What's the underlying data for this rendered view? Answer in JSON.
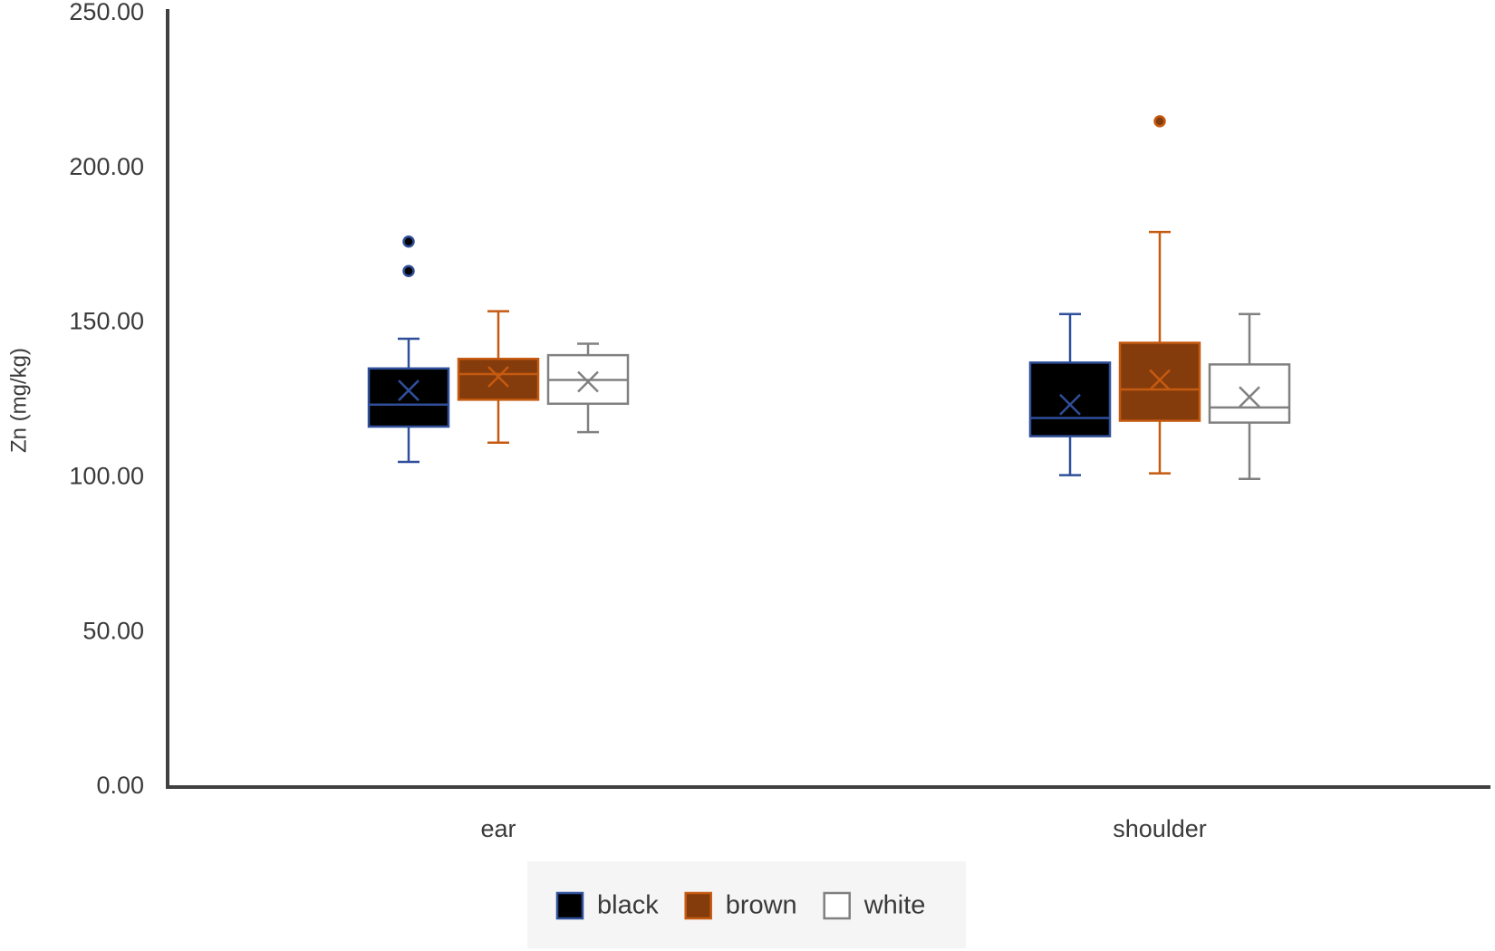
{
  "chart_data": {
    "type": "box",
    "y_label": "Zn (mg/kg)",
    "categories": [
      "ear",
      "shoulder"
    ],
    "ylim": [
      0,
      250
    ],
    "yticks": [
      {
        "value": 0,
        "label": "0.00"
      },
      {
        "value": 50,
        "label": "50.00"
      },
      {
        "value": 100,
        "label": "100.00"
      },
      {
        "value": 150,
        "label": "150.00"
      },
      {
        "value": 200,
        "label": "200.00"
      },
      {
        "value": 250,
        "label": "250.00"
      }
    ],
    "grid": false,
    "legend": "bottom",
    "series": [
      {
        "name": "black",
        "color": "#000000",
        "edge_color": "#2f4f9a",
        "values": [
          {
            "min": 105.1,
            "q1": 116.5,
            "median": 123.6,
            "q3": 135.3,
            "max": 144.9,
            "mean": 128.2,
            "outliers": [
              176.3,
              166.8
            ]
          },
          {
            "min": 100.8,
            "q1": 113.4,
            "median": 119.3,
            "q3": 137.2,
            "max": 152.9,
            "mean": 123.6,
            "outliers": []
          }
        ]
      },
      {
        "name": "brown",
        "color": "#843c0c",
        "edge_color": "#c55a11",
        "values": [
          {
            "min": 111.3,
            "q1": 125.2,
            "median": 133.5,
            "q3": 138.4,
            "max": 153.8,
            "mean": 132.6,
            "outliers": []
          },
          {
            "min": 101.4,
            "q1": 118.4,
            "median": 128.5,
            "q3": 143.6,
            "max": 179.4,
            "mean": 131.6,
            "outliers": [
              215.2
            ]
          }
        ]
      },
      {
        "name": "white",
        "color": "#ffffff",
        "edge_color": "#808080",
        "values": [
          {
            "min": 114.7,
            "q1": 123.9,
            "median": 131.6,
            "q3": 139.6,
            "max": 143.3,
            "mean": 131.0,
            "outliers": []
          },
          {
            "min": 99.6,
            "q1": 117.8,
            "median": 122.7,
            "q3": 136.6,
            "max": 152.9,
            "mean": 126.1,
            "outliers": []
          }
        ]
      }
    ]
  }
}
